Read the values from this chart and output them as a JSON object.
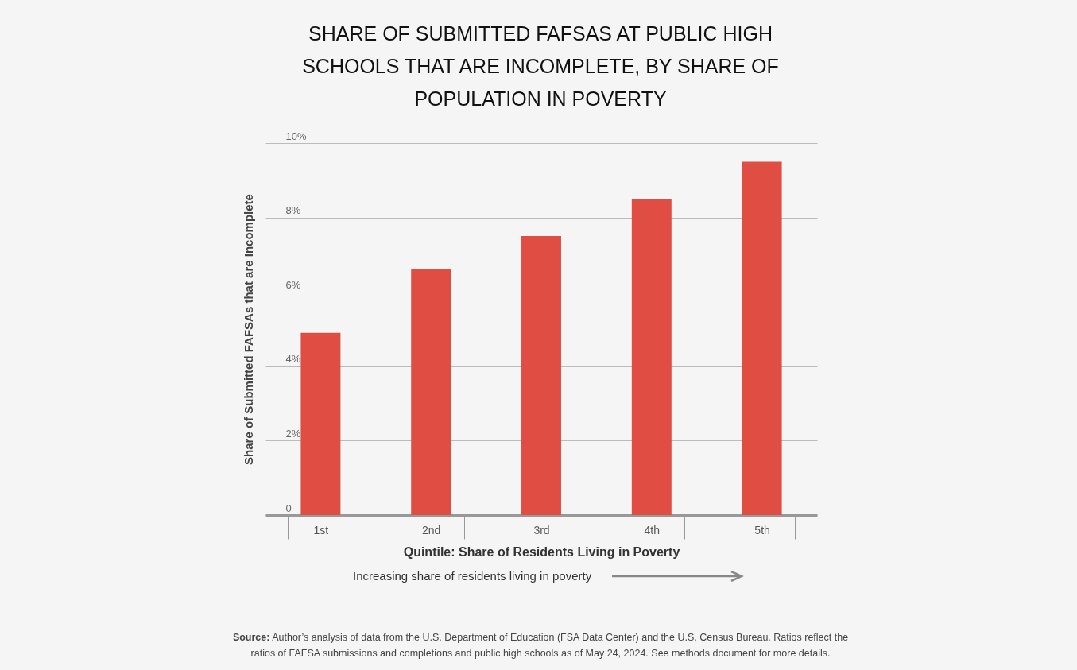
{
  "chart_data": {
    "type": "bar",
    "title": "SHARE OF SUBMITTED FAFSAS AT PUBLIC HIGH SCHOOLS THAT ARE INCOMPLETE, BY SHARE OF POPULATION IN POVERTY",
    "xlabel": "Quintile: Share of Residents Living in Poverty",
    "ylabel": "Share of Submitted FAFSAs that are Incomplete",
    "categories": [
      "1st",
      "2nd",
      "3rd",
      "4th",
      "5th"
    ],
    "values": [
      4.9,
      6.6,
      7.5,
      8.5,
      9.5
    ],
    "color": "#e04e43",
    "ylim": [
      0,
      10
    ],
    "yticks": [
      0,
      {
        "value": 2,
        "label": "2%"
      },
      {
        "value": 4,
        "label": "4%"
      },
      {
        "value": 6,
        "label": "6%"
      },
      {
        "value": 8,
        "label": "8%"
      },
      {
        "value": 10,
        "label": "10%"
      }
    ],
    "grid": "y",
    "annotations": [
      "Increasing share of residents living in poverty",
      "Source: Author’s analysis of data from the U.S. Department of Education (FSA Data Center) and the U.S. Census Bureau. Ratios reflect the ratios of FAFSA submissions and completions and public high schools as of May 24, 2024. See methods document for more details."
    ]
  }
}
